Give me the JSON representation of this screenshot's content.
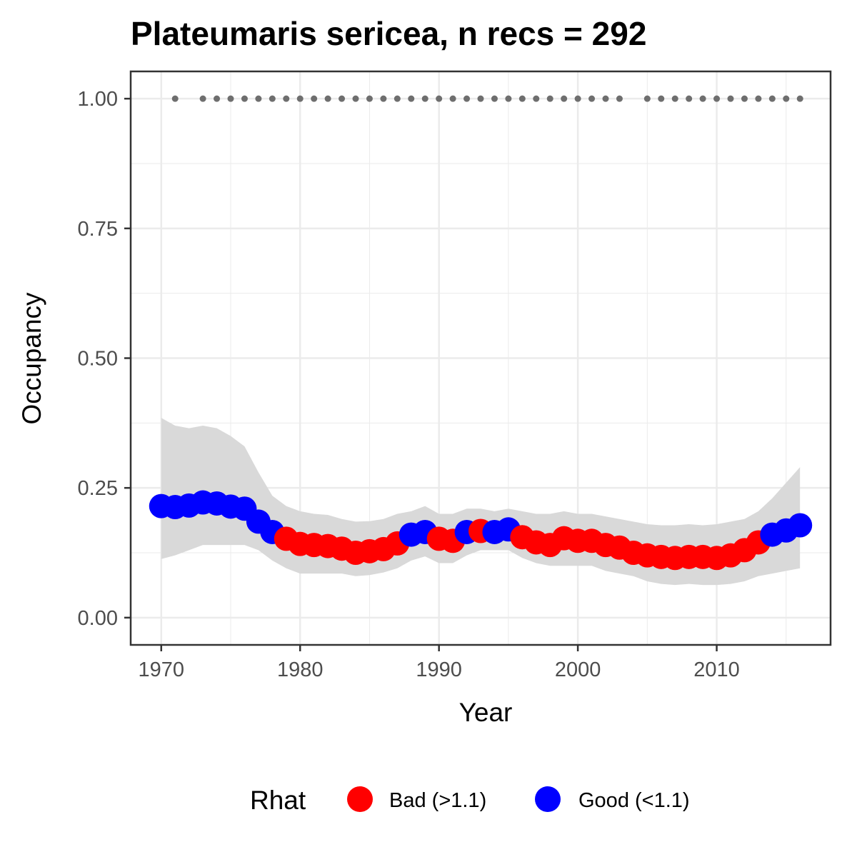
{
  "chart_data": {
    "type": "scatter",
    "title": "Plateumaris sericea, n recs = 292",
    "xlabel": "Year",
    "ylabel": "Occupancy",
    "xlim": [
      1967.8,
      2018.2
    ],
    "ylim": [
      -0.0525,
      1.0525
    ],
    "x_ticks": [
      1970,
      1980,
      1990,
      2000,
      2010
    ],
    "x_tick_labels": [
      "1970",
      "1980",
      "1990",
      "2000",
      "2010"
    ],
    "y_ticks": [
      0,
      0.25,
      0.5,
      0.75,
      1.0
    ],
    "y_tick_labels": [
      "0.00",
      "0.25",
      "0.50",
      "0.75",
      "1.00"
    ],
    "grid": true,
    "legend": {
      "title": "Rhat",
      "position": "bottom",
      "entries": [
        {
          "label": "Bad (>1.1)",
          "color": "#ff0000"
        },
        {
          "label": "Good (<1.1)",
          "color": "#0000ff"
        }
      ]
    },
    "colors": {
      "bad": "#ff0000",
      "good": "#0000ff",
      "ribbon": "#d9d9d9",
      "record_marks": "#6e6e6e",
      "panel_border": "#333333",
      "grid": "#ebebeb"
    },
    "years": [
      1970,
      1971,
      1972,
      1973,
      1974,
      1975,
      1976,
      1977,
      1978,
      1979,
      1980,
      1981,
      1982,
      1983,
      1984,
      1985,
      1986,
      1987,
      1988,
      1989,
      1990,
      1991,
      1992,
      1993,
      1994,
      1995,
      1996,
      1997,
      1998,
      1999,
      2000,
      2001,
      2002,
      2003,
      2004,
      2005,
      2006,
      2007,
      2008,
      2009,
      2010,
      2011,
      2012,
      2013,
      2014,
      2015,
      2016
    ],
    "occupancy": [
      0.215,
      0.213,
      0.216,
      0.222,
      0.22,
      0.214,
      0.21,
      0.185,
      0.165,
      0.152,
      0.142,
      0.14,
      0.138,
      0.133,
      0.125,
      0.128,
      0.132,
      0.143,
      0.16,
      0.165,
      0.152,
      0.148,
      0.165,
      0.167,
      0.165,
      0.17,
      0.155,
      0.145,
      0.14,
      0.153,
      0.148,
      0.148,
      0.14,
      0.135,
      0.125,
      0.12,
      0.117,
      0.115,
      0.117,
      0.117,
      0.115,
      0.12,
      0.13,
      0.145,
      0.16,
      0.168,
      0.178
    ],
    "rhat_status": [
      "Good",
      "Good",
      "Good",
      "Good",
      "Good",
      "Good",
      "Good",
      "Good",
      "Good",
      "Bad",
      "Bad",
      "Bad",
      "Bad",
      "Bad",
      "Bad",
      "Bad",
      "Bad",
      "Bad",
      "Good",
      "Good",
      "Bad",
      "Bad",
      "Good",
      "Bad",
      "Good",
      "Good",
      "Bad",
      "Bad",
      "Bad",
      "Bad",
      "Bad",
      "Bad",
      "Bad",
      "Bad",
      "Bad",
      "Bad",
      "Bad",
      "Bad",
      "Bad",
      "Bad",
      "Bad",
      "Bad",
      "Bad",
      "Bad",
      "Good",
      "Good",
      "Good"
    ],
    "ci_lower": [
      0.113,
      0.12,
      0.13,
      0.14,
      0.14,
      0.14,
      0.14,
      0.13,
      0.11,
      0.095,
      0.085,
      0.085,
      0.085,
      0.085,
      0.08,
      0.082,
      0.087,
      0.095,
      0.11,
      0.118,
      0.105,
      0.105,
      0.12,
      0.13,
      0.13,
      0.13,
      0.115,
      0.105,
      0.1,
      0.1,
      0.1,
      0.1,
      0.09,
      0.085,
      0.08,
      0.07,
      0.065,
      0.063,
      0.065,
      0.063,
      0.063,
      0.065,
      0.07,
      0.08,
      0.085,
      0.09,
      0.095
    ],
    "ci_upper": [
      0.385,
      0.37,
      0.365,
      0.37,
      0.365,
      0.35,
      0.33,
      0.28,
      0.235,
      0.215,
      0.205,
      0.2,
      0.198,
      0.19,
      0.185,
      0.186,
      0.19,
      0.2,
      0.205,
      0.215,
      0.2,
      0.2,
      0.21,
      0.21,
      0.205,
      0.21,
      0.205,
      0.2,
      0.2,
      0.205,
      0.2,
      0.2,
      0.195,
      0.19,
      0.185,
      0.18,
      0.178,
      0.178,
      0.18,
      0.178,
      0.18,
      0.185,
      0.19,
      0.205,
      0.23,
      0.26,
      0.29
    ],
    "record_years": [
      1971,
      1973,
      1974,
      1975,
      1976,
      1977,
      1978,
      1979,
      1980,
      1981,
      1982,
      1983,
      1984,
      1985,
      1986,
      1987,
      1988,
      1989,
      1990,
      1991,
      1992,
      1993,
      1994,
      1995,
      1996,
      1997,
      1998,
      1999,
      2000,
      2001,
      2002,
      2003,
      2005,
      2006,
      2007,
      2008,
      2009,
      2010,
      2011,
      2012,
      2013,
      2014,
      2015,
      2016
    ],
    "record_y": 1.0
  }
}
